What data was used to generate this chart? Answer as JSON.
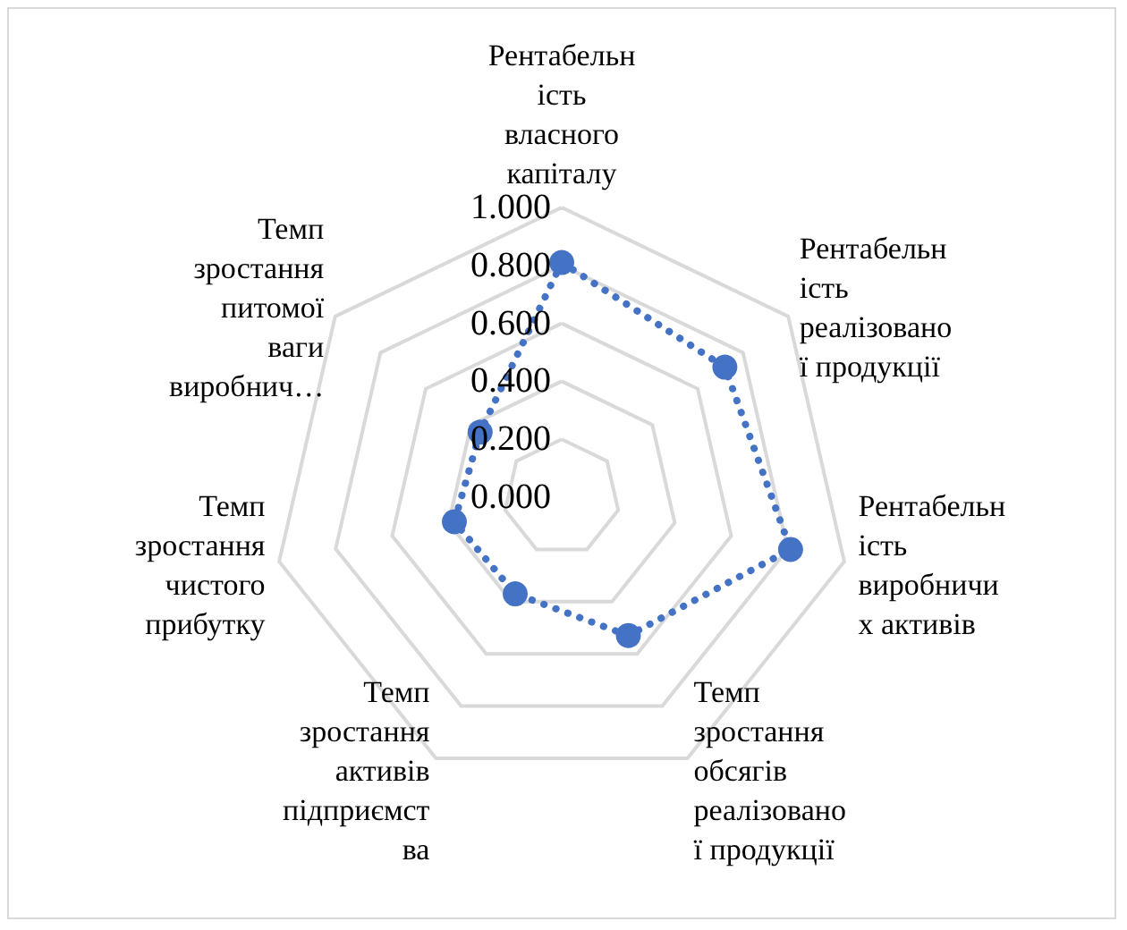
{
  "chart_data": {
    "type": "radar",
    "categories": [
      "Рентабельн\nість\nвласного\nкапіталу",
      "Рентабельн\nість\nреалізовано\nї продукції",
      "Рентабельн\nість\nвиробничи\nх активів",
      "Темп\nзростання\nобсягів\nреалізовано\nї продукції",
      "Темп\nзростання\nактивів\nпідприємст\nва",
      "Темп\nзростання\nчистого\nприбутку",
      "Темп\nзростання\nпитомої\nваги\nвиробнич…"
    ],
    "series": [
      {
        "color": "#4472c4",
        "values": [
          0.81,
          0.72,
          0.81,
          0.53,
          0.37,
          0.38,
          0.36
        ]
      }
    ],
    "ylim": [
      0,
      1
    ],
    "yticks": [
      {
        "value": 0,
        "label": "0.000"
      },
      {
        "value": 0.2,
        "label": "0.200"
      },
      {
        "value": 0.4,
        "label": "0.400"
      },
      {
        "value": 0.6,
        "label": "0.600"
      },
      {
        "value": 0.8,
        "label": "0.800"
      },
      {
        "value": 1,
        "label": "1.000"
      }
    ],
    "grid": true,
    "marker": "circle",
    "line_style": "dotted"
  }
}
